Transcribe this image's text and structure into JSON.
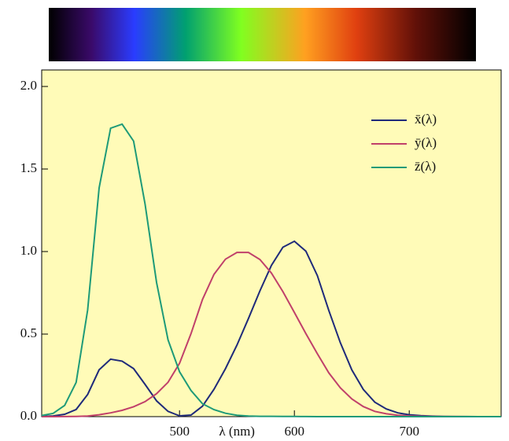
{
  "chart_data": {
    "type": "line",
    "x_label": "λ (nm)",
    "x": [
      380,
      390,
      400,
      410,
      420,
      430,
      440,
      450,
      460,
      470,
      480,
      490,
      500,
      510,
      520,
      530,
      540,
      550,
      560,
      570,
      580,
      590,
      600,
      610,
      620,
      630,
      640,
      650,
      660,
      670,
      680,
      690,
      700,
      710,
      720,
      730,
      740,
      750,
      760,
      770,
      780
    ],
    "series": [
      {
        "name": "x̄(λ)",
        "color": "#1f2a7a",
        "values": [
          0.0014,
          0.0042,
          0.0143,
          0.0435,
          0.1344,
          0.2839,
          0.3483,
          0.3362,
          0.2908,
          0.1954,
          0.0956,
          0.032,
          0.0049,
          0.0093,
          0.0633,
          0.1655,
          0.2904,
          0.4334,
          0.5945,
          0.7621,
          0.9163,
          1.0263,
          1.0622,
          1.0026,
          0.8544,
          0.6424,
          0.4479,
          0.2835,
          0.1649,
          0.0874,
          0.0468,
          0.0227,
          0.0114,
          0.0058,
          0.0029,
          0.0014,
          0.0007,
          0.0003,
          0.0002,
          0.0001,
          0
        ]
      },
      {
        "name": "ȳ(λ)",
        "color": "#c0406a",
        "values": [
          0,
          0.0001,
          0.0004,
          0.0012,
          0.004,
          0.0116,
          0.023,
          0.038,
          0.06,
          0.091,
          0.139,
          0.208,
          0.323,
          0.503,
          0.71,
          0.862,
          0.954,
          0.995,
          0.995,
          0.952,
          0.87,
          0.757,
          0.631,
          0.503,
          0.381,
          0.265,
          0.175,
          0.107,
          0.061,
          0.032,
          0.017,
          0.0082,
          0.0041,
          0.0021,
          0.001,
          0.0005,
          0.0003,
          0.0001,
          0.0001,
          0,
          0
        ]
      },
      {
        "name": "z̄(λ)",
        "color": "#1e9a78",
        "values": [
          0.0065,
          0.0201,
          0.0679,
          0.2074,
          0.6456,
          1.3856,
          1.7471,
          1.7721,
          1.6692,
          1.2876,
          0.813,
          0.4652,
          0.272,
          0.1582,
          0.0782,
          0.0422,
          0.0203,
          0.0087,
          0.0039,
          0.0021,
          0.0017,
          0.0011,
          0.0008,
          0.0003,
          0.0002,
          0,
          0,
          0,
          0,
          0,
          0,
          0,
          0,
          0,
          0,
          0,
          0,
          0,
          0,
          0,
          0
        ]
      }
    ],
    "xlim": [
      380,
      780
    ],
    "xticks": [
      500,
      600,
      700
    ],
    "ylim": [
      0,
      2.1
    ],
    "yticks": [
      {
        "value": 0,
        "label": "0.0"
      },
      {
        "value": 0.5,
        "label": "0.5"
      },
      {
        "value": 1,
        "label": "1.0"
      },
      {
        "value": 1.5,
        "label": "1.5"
      },
      {
        "value": 2,
        "label": "2.0"
      }
    ],
    "legend": "top-right"
  }
}
